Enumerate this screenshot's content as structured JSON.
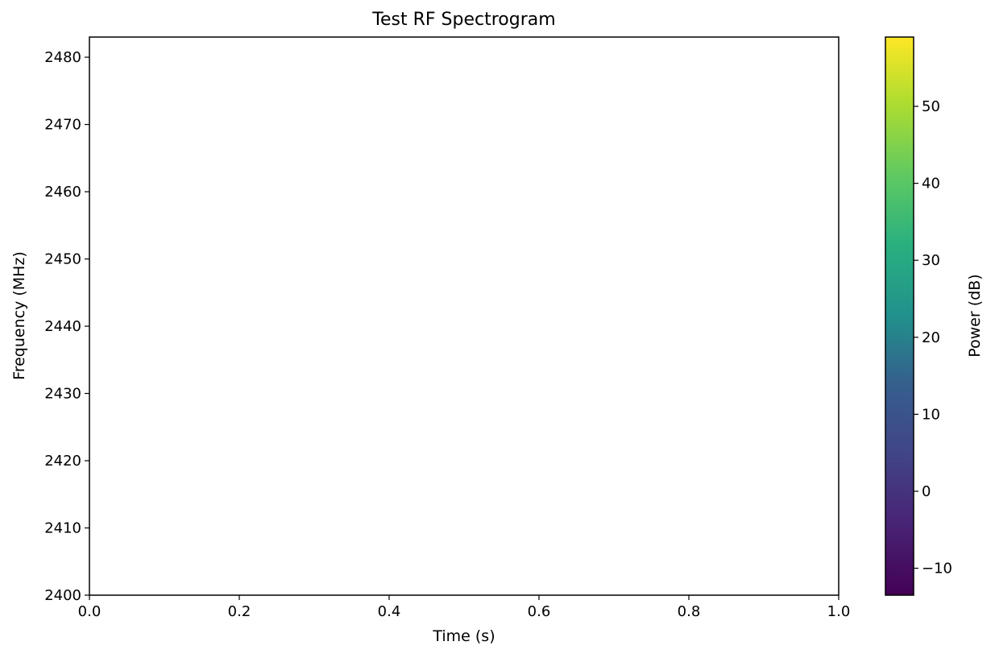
{
  "chart_data": {
    "type": "heatmap",
    "title": "Test RF Spectrogram",
    "xlabel": "Time (s)",
    "ylabel": "Frequency (MHz)",
    "xlim": [
      0.0,
      1.0
    ],
    "ylim": [
      2400,
      2483
    ],
    "xticks": [
      "0.0",
      "0.2",
      "0.4",
      "0.6",
      "0.8",
      "1.0"
    ],
    "yticks": [
      "2400",
      "2410",
      "2420",
      "2430",
      "2440",
      "2450",
      "2460",
      "2470",
      "2480"
    ],
    "plot_area": "empty",
    "grid": false,
    "colorbar": {
      "label": "Power (dB)",
      "colormap": "viridis",
      "range": [
        -13.5,
        59
      ],
      "ticks": [
        "−10",
        "0",
        "10",
        "20",
        "30",
        "40",
        "50"
      ]
    }
  }
}
